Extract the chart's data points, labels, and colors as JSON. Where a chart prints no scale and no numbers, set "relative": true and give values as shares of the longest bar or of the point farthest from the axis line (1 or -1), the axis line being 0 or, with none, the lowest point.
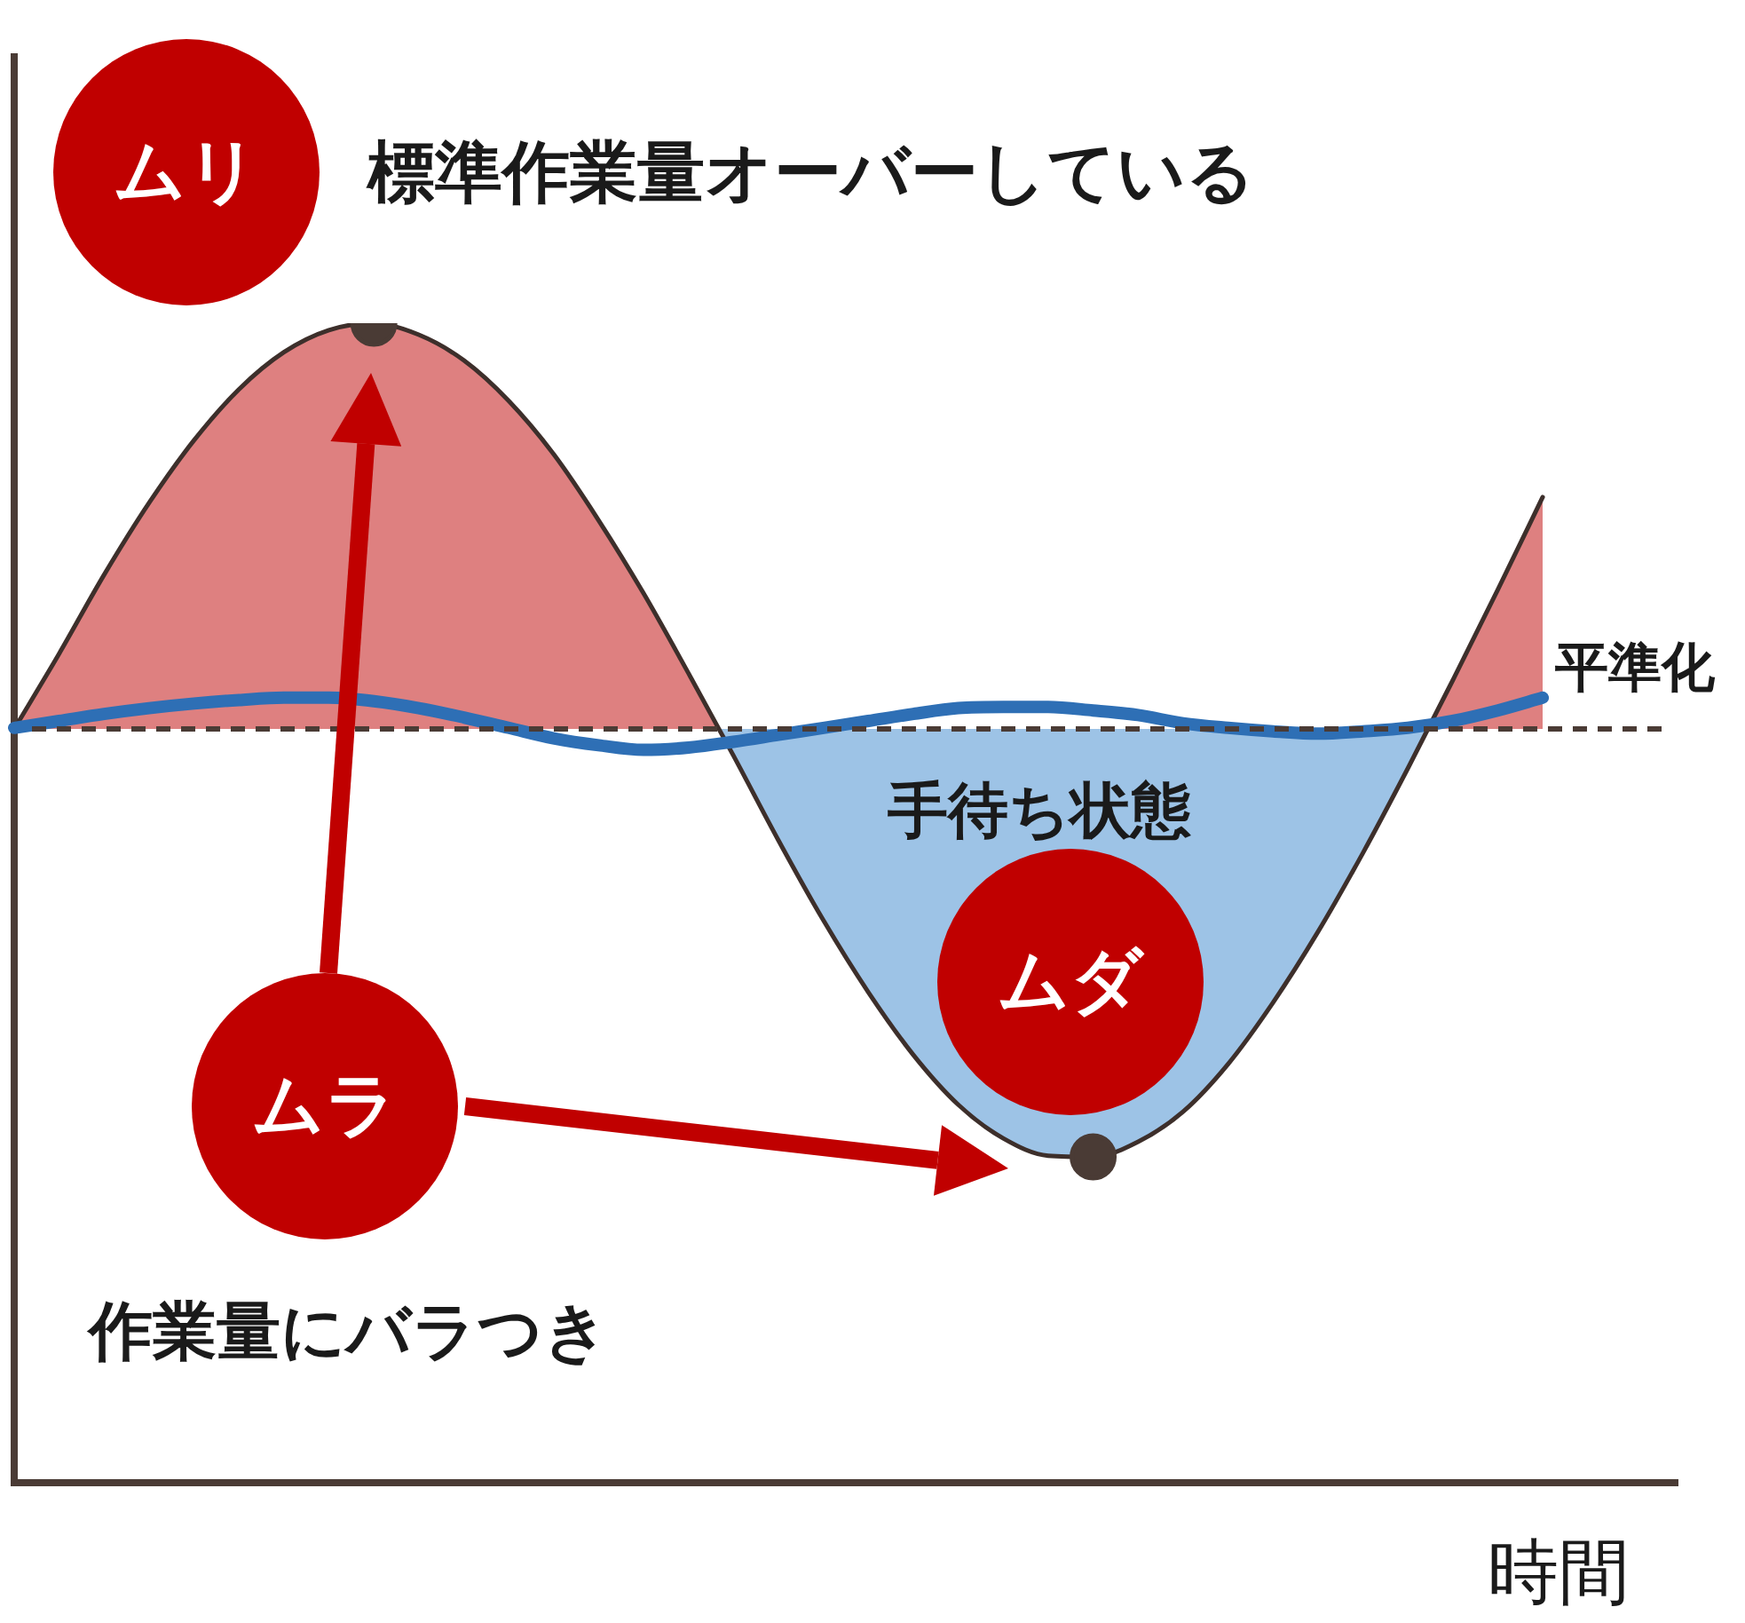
{
  "chart_data": {
    "type": "line",
    "relative": true,
    "xlabel": "時間",
    "categories": [
      null,
      null,
      null,
      null,
      null,
      null,
      null,
      null,
      null,
      null,
      null,
      null,
      null,
      null,
      null,
      null,
      null,
      null,
      null,
      null,
      null,
      null,
      null,
      null,
      null,
      null,
      null,
      null,
      null,
      null,
      null,
      null,
      null,
      null,
      null,
      null,
      null,
      null
    ],
    "series": [
      {
        "color": "#3d2f2b",
        "values": [
          0.65,
          0.715,
          0.783,
          0.845,
          0.899,
          0.943,
          0.975,
          0.994,
          1.0,
          0.99,
          0.968,
          0.933,
          0.887,
          0.83,
          0.767,
          0.698,
          0.627,
          0.554,
          0.485,
          0.423,
          0.369,
          0.326,
          0.297,
          0.282,
          0.281,
          0.294,
          0.32,
          0.361,
          0.414,
          0.475,
          0.543,
          0.616,
          0.692,
          0.77,
          0.85,
          null,
          null,
          null
        ]
      },
      {
        "name": "平準化",
        "color": "#2e6fb5",
        "values": [
          0.651,
          0.657,
          0.663,
          0.668,
          0.672,
          0.675,
          0.677,
          0.677,
          0.674,
          0.668,
          0.66,
          0.651,
          0.642,
          0.636,
          0.632,
          0.634,
          0.639,
          0.645,
          0.651,
          0.657,
          0.663,
          0.668,
          0.669,
          0.669,
          0.666,
          0.662,
          0.655,
          0.651,
          0.648,
          0.646,
          0.648,
          0.651,
          0.657,
          0.666,
          0.677,
          null,
          null,
          null
        ]
      }
    ],
    "ref_lines": [
      {
        "axis": "y",
        "value": 0.65,
        "color": "#4a3b35",
        "line_style": "dashed"
      }
    ],
    "annotations": [
      "ムリ",
      "標準作業量オーバーしている",
      "手待ち状態",
      "ムダ",
      "ムラ",
      "作業量にバラつき"
    ],
    "legend": false,
    "grid": false
  }
}
